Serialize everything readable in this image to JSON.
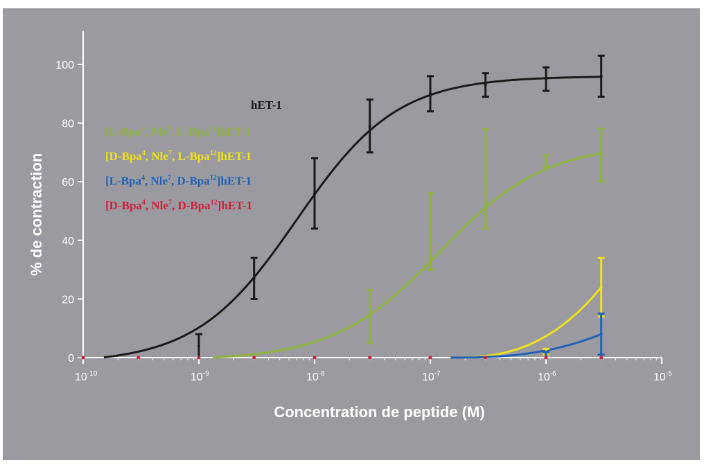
{
  "chart_data": {
    "type": "line",
    "title": "",
    "xlabel": "Concentration de peptide (M)",
    "ylabel": "% de contraction",
    "xscale": "log",
    "xlim": [
      1e-10,
      1e-05
    ],
    "ylim": [
      0,
      110
    ],
    "x_ticks": [
      {
        "base": "10",
        "exp": "-10",
        "value": 1e-10
      },
      {
        "base": "10",
        "exp": "-9",
        "value": 1e-09
      },
      {
        "base": "10",
        "exp": "-8",
        "value": 1e-08
      },
      {
        "base": "10",
        "exp": "-7",
        "value": 1e-07
      },
      {
        "base": "10",
        "exp": "-6",
        "value": 1e-06
      },
      {
        "base": "10",
        "exp": "-5",
        "value": 1e-05
      }
    ],
    "y_ticks": [
      0,
      20,
      40,
      60,
      80,
      100
    ],
    "grid": false,
    "legend_position": "upper-left",
    "series": [
      {
        "name": "hET-1",
        "color": "#1a1a1a",
        "x": [
          3e-10,
          1e-09,
          3e-09,
          1e-08,
          3e-08,
          1e-07,
          3e-07,
          1e-06,
          3e-06
        ],
        "y": [
          0,
          4,
          27,
          56,
          79,
          90,
          93,
          95,
          96
        ],
        "err": [
          0,
          4,
          7,
          12,
          9,
          6,
          4,
          4,
          7
        ],
        "curve": {
          "bottom": -2,
          "top": 96,
          "ec50": 7e-09,
          "hill": 1.0
        }
      },
      {
        "name": "[L-Bpa4, Nle7, L-Bpa12]hET-1",
        "legend_parts": [
          {
            "t": "[L-Bpa"
          },
          {
            "t": "4",
            "sup": true
          },
          {
            "t": ", Nle"
          },
          {
            "t": "7",
            "sup": true
          },
          {
            "t": ", L-Bpa"
          },
          {
            "t": "12",
            "sup": true
          },
          {
            "t": "]hET-1"
          }
        ],
        "color": "#8db33a",
        "x": [
          3e-09,
          3e-08,
          1e-07,
          3e-07,
          1e-06,
          3e-06
        ],
        "y": [
          0,
          14,
          43,
          61,
          67,
          69
        ],
        "err": [
          0,
          9,
          13,
          17,
          2,
          9
        ],
        "curve": {
          "bottom": -1,
          "top": 73,
          "ec50": 1.2e-07,
          "hill": 0.95
        }
      },
      {
        "name": "[D-Bpa4, Nle7, L-Bpa12]hET-1",
        "legend_parts": [
          {
            "t": "[D-Bpa"
          },
          {
            "t": "4",
            "sup": true
          },
          {
            "t": ", Nle"
          },
          {
            "t": "7",
            "sup": true
          },
          {
            "t": ", L-Bpa"
          },
          {
            "t": "12",
            "sup": true
          },
          {
            "t": "]hET-1"
          }
        ],
        "color": "#f0e21a",
        "x": [
          1e-06,
          3e-06
        ],
        "y": [
          2,
          24
        ],
        "err": [
          1,
          10
        ]
      },
      {
        "name": "[L-Bpa4, Nle7, D-Bpa12]hET-1",
        "legend_parts": [
          {
            "t": "[L-Bpa"
          },
          {
            "t": "4",
            "sup": true
          },
          {
            "t": ", Nle"
          },
          {
            "t": "7",
            "sup": true
          },
          {
            "t": ", D-Bpa"
          },
          {
            "t": "12",
            "sup": true
          },
          {
            "t": "]hET-1"
          }
        ],
        "color": "#1f62b8",
        "x": [
          1e-06,
          3e-06
        ],
        "y": [
          1,
          8
        ],
        "err": [
          1,
          7
        ]
      },
      {
        "name": "[D-Bpa4, Nle7, D-Bpa12]hET-1",
        "legend_parts": [
          {
            "t": "[D-Bpa"
          },
          {
            "t": "4",
            "sup": true
          },
          {
            "t": ", Nle"
          },
          {
            "t": "7",
            "sup": true
          },
          {
            "t": ", D-Bpa"
          },
          {
            "t": "12",
            "sup": true
          },
          {
            "t": "]hET-1"
          }
        ],
        "color": "#d11f3a",
        "x": [
          1e-10,
          3e-10,
          1e-09,
          3e-09,
          1e-08,
          3e-08,
          1e-07,
          3e-07,
          1e-06,
          3e-06
        ],
        "y": [
          0,
          0,
          0,
          0,
          0,
          0,
          0,
          0,
          0,
          0
        ],
        "err": [
          0,
          0,
          0,
          0,
          0,
          0,
          0,
          0,
          0,
          0
        ]
      }
    ]
  },
  "colors": {
    "panel_background": "#9b9aa0",
    "axis": "#ffffff"
  }
}
